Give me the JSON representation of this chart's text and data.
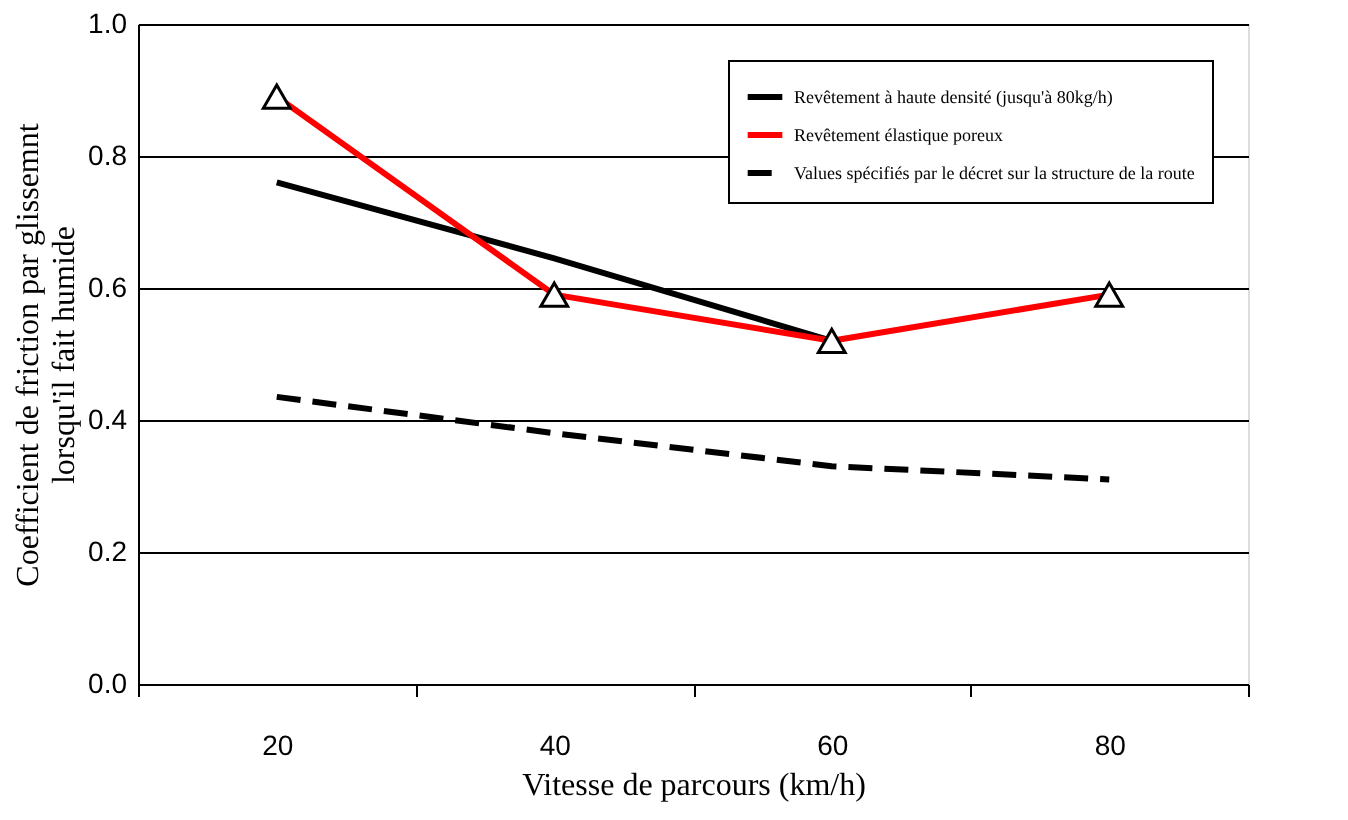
{
  "chart_data": {
    "type": "line",
    "xlabel": "Vitesse de parcours (km/h)",
    "ylabel": "Coefficient de friction par glissemnt\nlorsqu'il fait humide",
    "categories": [
      "20",
      "40",
      "60",
      "80"
    ],
    "ylim": [
      0,
      1
    ],
    "yticks": [
      {
        "value": 0,
        "label": "0.0"
      },
      {
        "value": 0.2,
        "label": "0.2"
      },
      {
        "value": 0.4,
        "label": "0.4"
      },
      {
        "value": 0.6,
        "label": "0.6"
      },
      {
        "value": 0.8,
        "label": "0.8"
      },
      {
        "value": 1,
        "label": "1.0"
      }
    ],
    "grid": "y",
    "legend": "top right",
    "series": [
      {
        "name": "Revêtement à haute densité  (jusqu'à 80kg/h)",
        "color": "#000000",
        "values": [
          0.76,
          0.645,
          0.52,
          null
        ],
        "line_style": "solid",
        "marker": "none"
      },
      {
        "name": "Revêtement élastique poreux",
        "color": "#ff0000",
        "values": [
          0.89,
          0.59,
          0.52,
          0.59
        ],
        "line_style": "solid",
        "marker": "triangle"
      },
      {
        "name": "Values spécifiés par le décret sur la structure de la route",
        "color": "#000000",
        "values": [
          0.435,
          0.38,
          0.33,
          0.31
        ],
        "line_style": "dashed",
        "marker": "none"
      }
    ]
  }
}
